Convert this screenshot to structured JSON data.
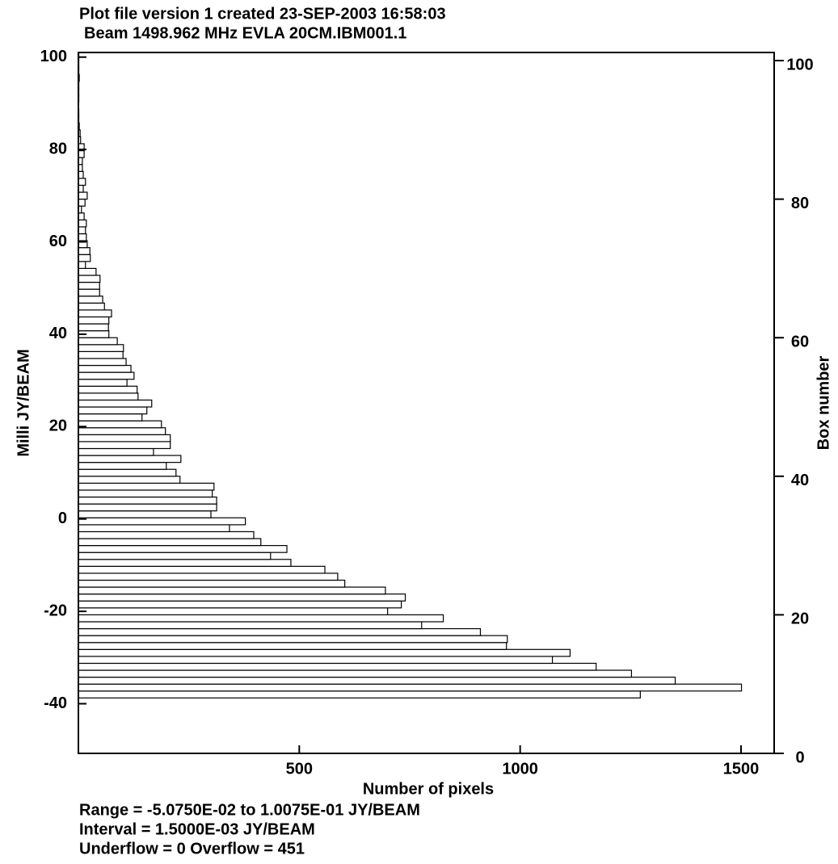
{
  "chart_data": {
    "type": "histogram",
    "orientation": "horizontal",
    "title": "Plot file version 1  created 23-SEP-2003 16:58:03",
    "subtitle": "Beam 1498.962 MHz  EVLA 20CM.IBM001.1",
    "x_label": "Number of pixels",
    "y_label": "Milli JY/BEAM",
    "y2_label": "Box number",
    "notes": [
      "Range = -5.0750E-02 to 1.0075E-01 JY/BEAM",
      "Interval = 1.5000E-03 JY/BEAM",
      "Underflow = 0  Overflow = 451"
    ],
    "color": "#ffffff",
    "edge_color": "#000000",
    "bins": [
      -38.75,
      -37.25,
      -35.75,
      -34.25,
      -32.75,
      -31.25,
      -29.75,
      -28.25,
      -26.75,
      -25.25,
      -23.75,
      -22.25,
      -20.75,
      -19.25,
      -17.75,
      -16.25,
      -14.75,
      -13.25,
      -11.75,
      -10.25,
      -8.75,
      -7.25,
      -5.75,
      -4.25,
      -2.75,
      -1.25,
      0.25,
      1.75,
      3.25,
      4.75,
      6.25,
      7.75,
      9.25,
      10.75,
      12.25,
      13.75,
      15.25,
      16.75,
      18.25,
      19.75,
      21.25,
      22.75,
      24.25,
      25.75,
      27.25,
      28.75,
      30.25,
      31.75,
      33.25,
      34.75,
      36.25,
      37.75,
      39.25,
      40.75,
      42.25,
      43.75,
      45.25,
      46.75,
      48.25,
      49.75,
      51.25,
      52.75,
      54.25,
      55.75,
      57.25,
      58.75,
      60.25,
      61.75,
      63.25,
      64.75,
      66.25,
      67.75,
      69.25,
      70.75,
      72.25,
      73.75,
      75.25,
      76.75,
      78.25,
      79.75,
      81.25,
      82.75,
      84.25,
      85.75,
      87.25,
      88.75,
      90.25,
      91.75,
      93.25,
      94.75,
      96.25,
      97.75,
      99.25,
      100.75
    ],
    "values": [
      1272,
      1501,
      1351,
      1252,
      1172,
      1073,
      1113,
      969,
      971,
      910,
      777,
      826,
      700,
      731,
      740,
      695,
      603,
      587,
      558,
      481,
      435,
      472,
      413,
      397,
      342,
      378,
      300,
      313,
      313,
      303,
      307,
      230,
      221,
      199,
      232,
      170,
      208,
      208,
      197,
      188,
      144,
      155,
      166,
      135,
      133,
      110,
      126,
      119,
      108,
      101,
      102,
      88,
      69,
      68,
      69,
      75,
      59,
      55,
      48,
      48,
      49,
      40,
      16,
      27,
      26,
      20,
      18,
      16,
      18,
      13,
      7,
      15,
      20,
      11,
      16,
      11,
      9,
      9,
      13,
      13,
      5,
      4,
      2,
      1,
      1,
      0,
      1,
      1,
      1,
      2,
      1,
      1,
      1
    ],
    "xlim": [
      0,
      1575
    ],
    "xticks": [
      500,
      1000,
      1500
    ],
    "ylim": [
      -50.75,
      101
    ],
    "yticks": [
      -40,
      -20,
      0,
      20,
      40,
      60,
      80,
      100
    ],
    "y2lim": [
      0,
      101.17
    ],
    "y2ticks": [
      0,
      20,
      40,
      60,
      80,
      100
    ]
  }
}
